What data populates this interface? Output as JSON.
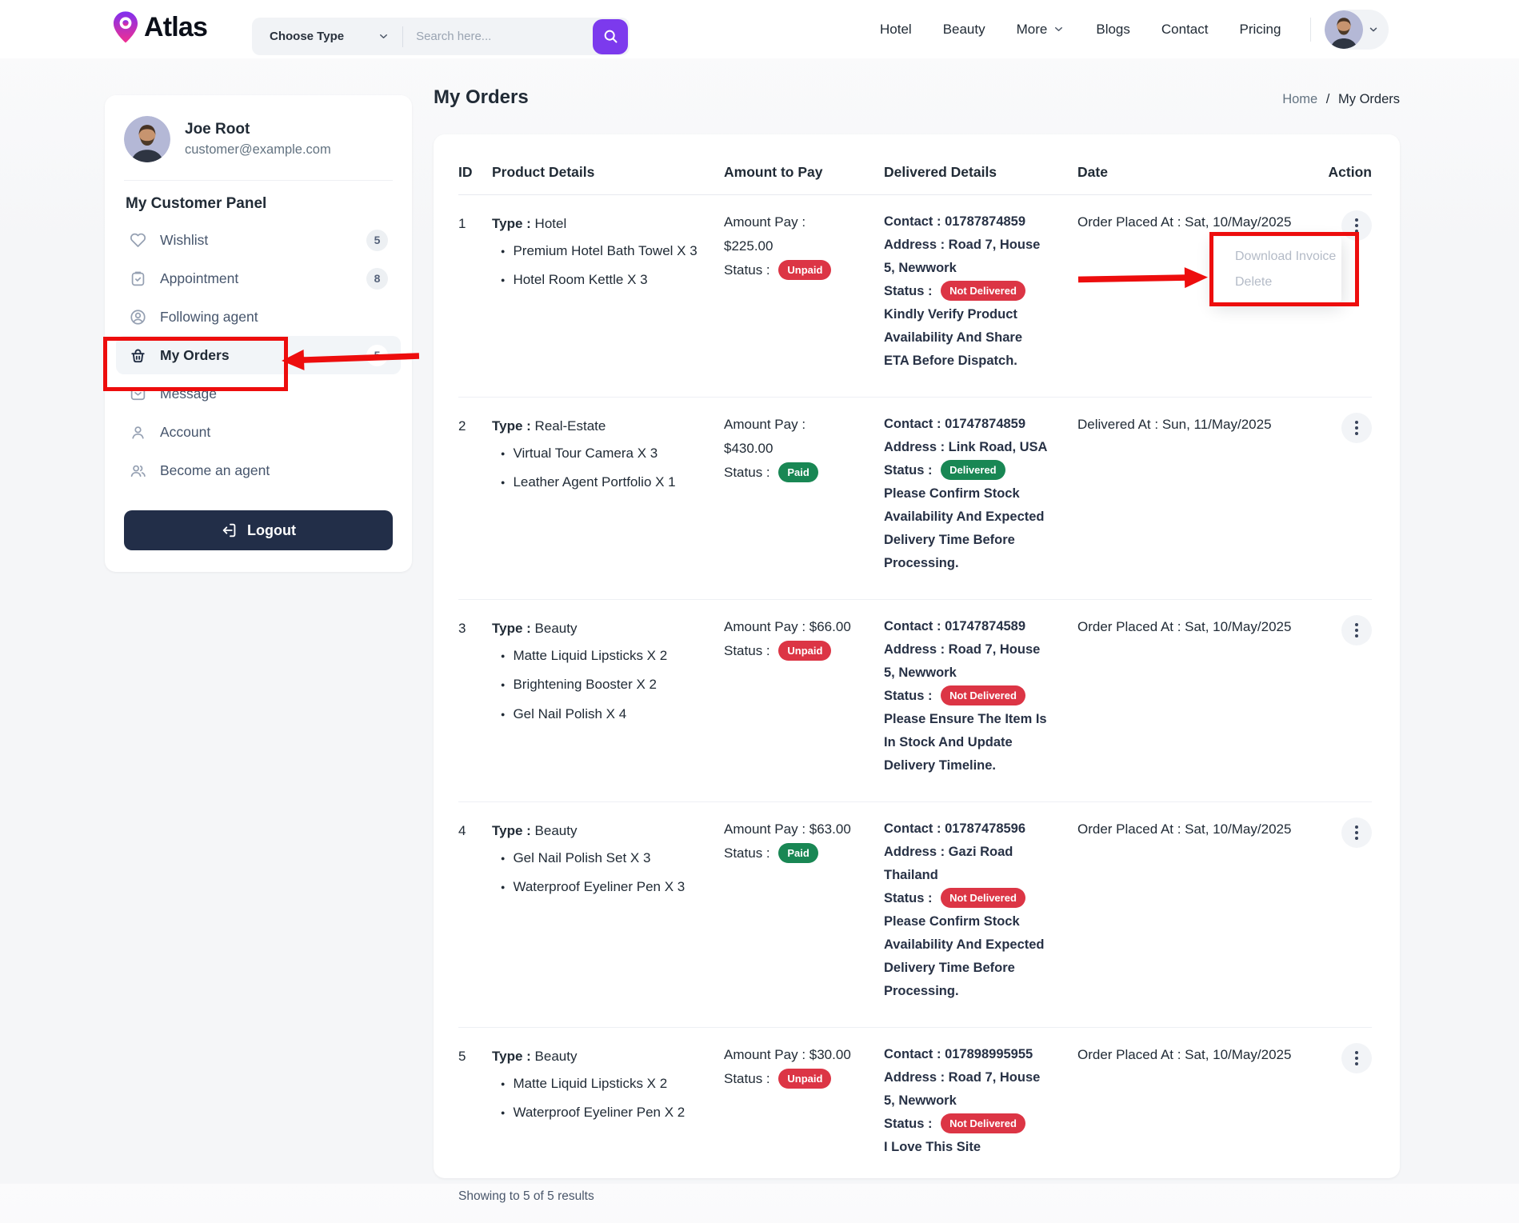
{
  "header": {
    "brand": "Atlas",
    "choose_type_label": "Choose Type",
    "search_placeholder": "Search here...",
    "nav_items": [
      {
        "label": "Hotel",
        "dropdown": false
      },
      {
        "label": "Beauty",
        "dropdown": false
      },
      {
        "label": "More",
        "dropdown": true
      },
      {
        "label": "Blogs",
        "dropdown": false
      },
      {
        "label": "Contact",
        "dropdown": false
      },
      {
        "label": "Pricing",
        "dropdown": false
      }
    ]
  },
  "sidebar": {
    "user": {
      "name": "Joe Root",
      "email": "customer@example.com"
    },
    "panel_title": "My Customer Panel",
    "items": [
      {
        "label": "Wishlist",
        "icon": "heart-icon",
        "badge": "5",
        "active": false
      },
      {
        "label": "Appointment",
        "icon": "clipboard-check-icon",
        "badge": "8",
        "active": false
      },
      {
        "label": "Following agent",
        "icon": "user-circle-icon",
        "badge": "",
        "active": false
      },
      {
        "label": "My Orders",
        "icon": "basket-icon",
        "badge": "5",
        "active": true
      },
      {
        "label": "Message",
        "icon": "mail-icon",
        "badge": "",
        "active": false
      },
      {
        "label": "Account",
        "icon": "user-icon",
        "badge": "",
        "active": false
      },
      {
        "label": "Become an agent",
        "icon": "users-icon",
        "badge": "",
        "active": false
      }
    ],
    "logout_label": "Logout"
  },
  "page": {
    "title": "My Orders",
    "breadcrumb": {
      "home": "Home",
      "separator": "/",
      "current": "My Orders"
    }
  },
  "orders_table": {
    "columns": [
      "ID",
      "Product Details",
      "Amount to Pay",
      "Delivered Details",
      "Date",
      "Action"
    ],
    "rows": [
      {
        "id": "1",
        "product": {
          "type_label": "Type :",
          "type": "Hotel",
          "items": [
            "Premium Hotel Bath Towel X 3",
            "Hotel Room Kettle X 3"
          ]
        },
        "amount": {
          "lines": [
            "Amount Pay :",
            "$225.00"
          ],
          "status_label": "Status :",
          "status": {
            "text": "Unpaid",
            "variant": "red"
          }
        },
        "delivered": {
          "contact": "Contact : 01787874859",
          "address": "Address : Road 7, House 5, Newwork",
          "status_label": "Status :",
          "status": {
            "text": "Not Delivered",
            "variant": "red"
          },
          "note": "Kindly Verify Product Availability And Share ETA Before Dispatch."
        },
        "date": "Order Placed At : Sat, 10/May/2025",
        "menu_open": true
      },
      {
        "id": "2",
        "product": {
          "type_label": "Type :",
          "type": "Real-Estate",
          "items": [
            "Virtual Tour Camera X 3",
            "Leather Agent Portfolio X 1"
          ]
        },
        "amount": {
          "lines": [
            "Amount Pay :",
            "$430.00"
          ],
          "status_label": "Status :",
          "status": {
            "text": "Paid",
            "variant": "green"
          }
        },
        "delivered": {
          "contact": "Contact : 01747874859",
          "address": "Address : Link Road, USA",
          "status_label": "Status :",
          "status": {
            "text": "Delivered",
            "variant": "green"
          },
          "note": "Please Confirm Stock Availability And Expected Delivery Time Before Processing."
        },
        "date": "Delivered At : Sun, 11/May/2025",
        "menu_open": false
      },
      {
        "id": "3",
        "product": {
          "type_label": "Type :",
          "type": "Beauty",
          "items": [
            "Matte Liquid Lipsticks X 2",
            "Brightening Booster X 2",
            "Gel Nail Polish X 4"
          ]
        },
        "amount": {
          "lines": [
            "Amount Pay : $66.00"
          ],
          "status_label": "Status :",
          "status": {
            "text": "Unpaid",
            "variant": "red"
          }
        },
        "delivered": {
          "contact": "Contact : 01747874589",
          "address": "Address : Road 7, House 5, Newwork",
          "status_label": "Status :",
          "status": {
            "text": "Not Delivered",
            "variant": "red"
          },
          "note": "Please Ensure The Item Is In Stock And Update Delivery Timeline."
        },
        "date": "Order Placed At : Sat, 10/May/2025",
        "menu_open": false
      },
      {
        "id": "4",
        "product": {
          "type_label": "Type :",
          "type": "Beauty",
          "items": [
            "Gel Nail Polish Set X 3",
            "Waterproof Eyeliner Pen X 3"
          ]
        },
        "amount": {
          "lines": [
            "Amount Pay : $63.00"
          ],
          "status_label": "Status :",
          "status": {
            "text": "Paid",
            "variant": "green"
          }
        },
        "delivered": {
          "contact": "Contact : 01787478596",
          "address": "Address : Gazi Road Thailand",
          "status_label": "Status :",
          "status": {
            "text": "Not Delivered",
            "variant": "red"
          },
          "note": "Please Confirm Stock Availability And Expected Delivery Time Before Processing."
        },
        "date": "Order Placed At : Sat, 10/May/2025",
        "menu_open": false
      },
      {
        "id": "5",
        "product": {
          "type_label": "Type :",
          "type": "Beauty",
          "items": [
            "Matte Liquid Lipsticks X 2",
            "Waterproof Eyeliner Pen X 2"
          ]
        },
        "amount": {
          "lines": [
            "Amount Pay : $30.00"
          ],
          "status_label": "Status :",
          "status": {
            "text": "Unpaid",
            "variant": "red"
          }
        },
        "delivered": {
          "contact": "Contact : 017898995955",
          "address": "Address : Road 7, House 5, Newwork",
          "status_label": "Status :",
          "status": {
            "text": "Not Delivered",
            "variant": "red"
          },
          "note": "I Love This Site"
        },
        "date": "Order Placed At : Sat, 10/May/2025",
        "menu_open": false
      }
    ],
    "footer": "Showing to 5 of 5 results"
  },
  "action_menu": {
    "items": [
      "Download Invoice",
      "Delete"
    ]
  },
  "colors": {
    "accent": "#7c3aed",
    "danger": "#dc3545",
    "success": "#198754",
    "navy": "#222e48",
    "annotation": "#ed0d0d"
  }
}
